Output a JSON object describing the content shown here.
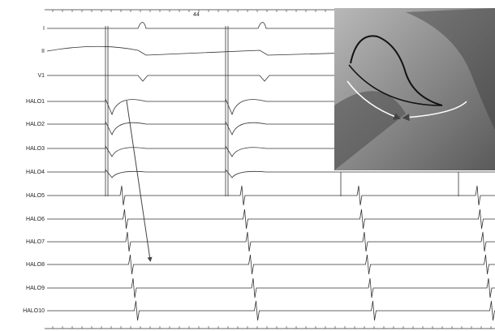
{
  "header": {
    "cycle_label": "44"
  },
  "leads": [
    {
      "label": "I"
    },
    {
      "label": "II"
    },
    {
      "label": "V1"
    },
    {
      "label": "HALO1"
    },
    {
      "label": "HALO2"
    },
    {
      "label": "HALO3"
    },
    {
      "label": "HALO4"
    },
    {
      "label": "HALO5"
    },
    {
      "label": "HALO6"
    },
    {
      "label": "HALO7"
    },
    {
      "label": "HALO8"
    },
    {
      "label": "HALO9"
    },
    {
      "label": "HALO10"
    }
  ]
}
